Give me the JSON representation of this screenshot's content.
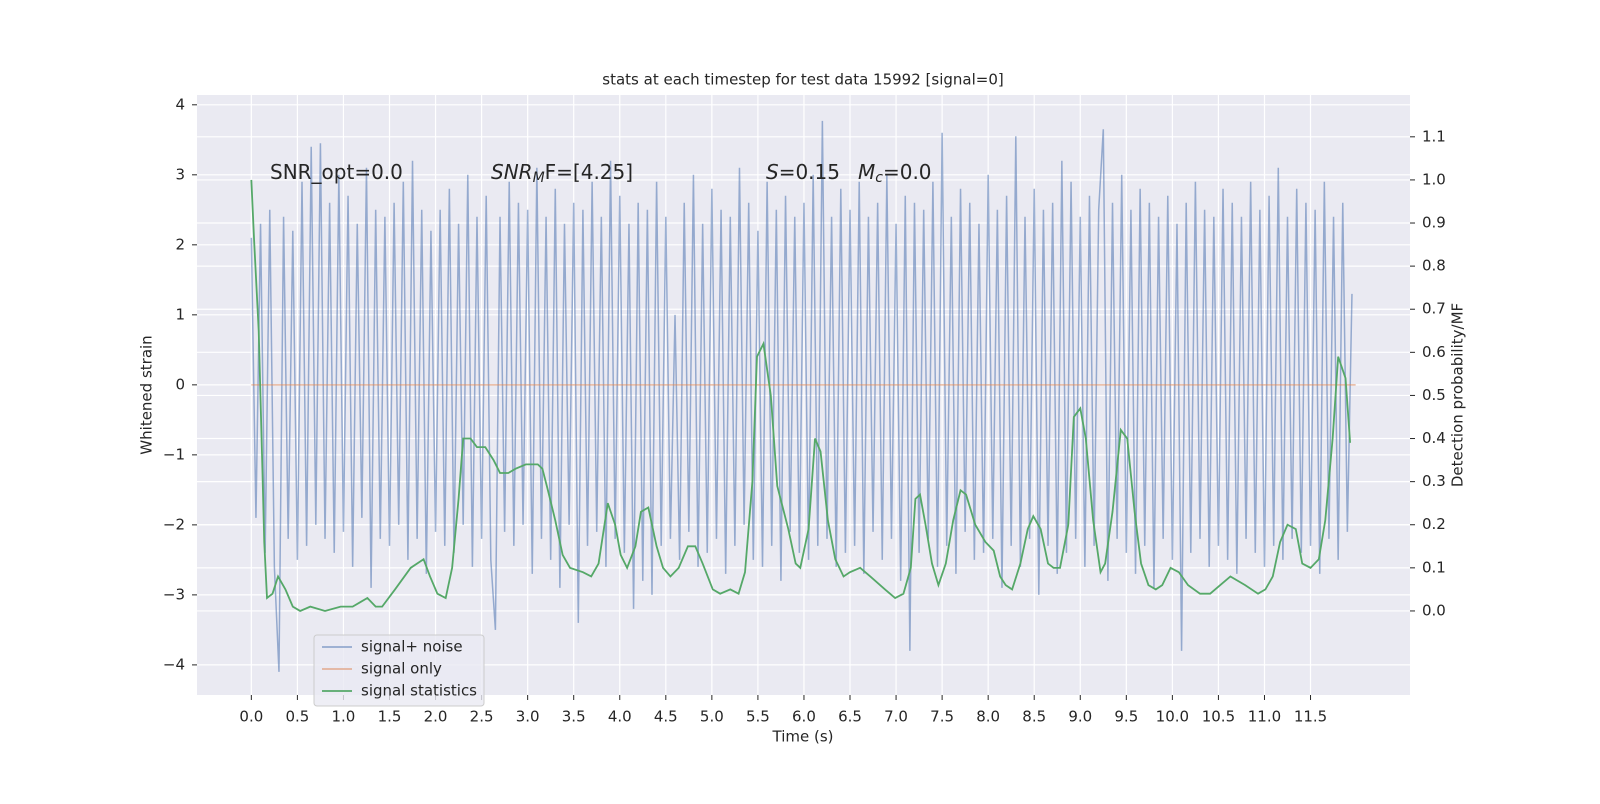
{
  "chart_data": {
    "type": "line",
    "title": "stats at each timestep for test data 15992 [signal=0]",
    "xlabel": "Time (s)",
    "ylabel": "Whitened strain",
    "y2label": "Detection probability/MF",
    "xlim": [
      -0.59,
      12.58
    ],
    "ylim": [
      -4.43,
      4.14
    ],
    "y2lim": [
      -0.195,
      1.197
    ],
    "grid": true,
    "legend_loc": "lower left",
    "xticks": [
      {
        "value": 0,
        "label": "0.0"
      },
      0.5,
      {
        "value": 1,
        "label": "1.0"
      },
      1.5,
      {
        "value": 2,
        "label": "2.0"
      },
      2.5,
      {
        "value": 3,
        "label": "3.0"
      },
      3.5,
      {
        "value": 4,
        "label": "4.0"
      },
      4.5,
      {
        "value": 5,
        "label": "5.0"
      },
      5.5,
      {
        "value": 6,
        "label": "6.0"
      },
      6.5,
      {
        "value": 7,
        "label": "7.0"
      },
      7.5,
      {
        "value": 8,
        "label": "8.0"
      },
      8.5,
      {
        "value": 9,
        "label": "9.0"
      },
      9.5,
      {
        "value": 10,
        "label": "10.0"
      },
      10.5,
      {
        "value": 11,
        "label": "11.0"
      },
      11.5
    ],
    "yticks": [
      {
        "value": -4,
        "label": "−4"
      },
      {
        "value": -3,
        "label": "−3"
      },
      {
        "value": -2,
        "label": "−2"
      },
      {
        "value": -1,
        "label": "−1"
      },
      0,
      1,
      2,
      3,
      4
    ],
    "y2ticks": [
      {
        "value": 0,
        "label": "0.0"
      },
      0.1,
      0.2,
      0.3,
      0.4,
      0.5,
      0.6,
      0.7,
      0.8,
      0.9,
      {
        "value": 1,
        "label": "1.0"
      },
      1.1
    ],
    "annotations": [
      {
        "parts": [
          "SNR_opt=0.0"
        ]
      },
      {
        "parts": [
          "SNR",
          "M",
          "F=[4.25]"
        ]
      },
      {
        "parts": [
          "S",
          "=0.15"
        ]
      },
      {
        "parts": [
          "M",
          "c",
          "=0.0"
        ]
      }
    ],
    "series": [
      {
        "name": "signal+ noise",
        "color": "#4c72b0",
        "axis": "y",
        "x": [
          0,
          0.05,
          0.1,
          0.15,
          0.2,
          0.25,
          0.3,
          0.35,
          0.4,
          0.45,
          0.5,
          0.55,
          0.6,
          0.65,
          0.7,
          0.75,
          0.8,
          0.85,
          0.9,
          0.95,
          1,
          1.05,
          1.1,
          1.15,
          1.2,
          1.25,
          1.3,
          1.35,
          1.4,
          1.45,
          1.5,
          1.55,
          1.6,
          1.65,
          1.7,
          1.75,
          1.8,
          1.85,
          1.9,
          1.95,
          2,
          2.05,
          2.1,
          2.15,
          2.2,
          2.25,
          2.3,
          2.35,
          2.4,
          2.45,
          2.5,
          2.55,
          2.6,
          2.65,
          2.7,
          2.75,
          2.8,
          2.85,
          2.9,
          2.95,
          3,
          3.05,
          3.1,
          3.15,
          3.2,
          3.25,
          3.3,
          3.35,
          3.4,
          3.45,
          3.5,
          3.55,
          3.6,
          3.65,
          3.7,
          3.75,
          3.8,
          3.85,
          3.9,
          3.95,
          4,
          4.05,
          4.1,
          4.15,
          4.2,
          4.25,
          4.3,
          4.35,
          4.4,
          4.45,
          4.5,
          4.55,
          4.6,
          4.65,
          4.7,
          4.75,
          4.8,
          4.85,
          4.9,
          4.95,
          5,
          5.05,
          5.1,
          5.15,
          5.2,
          5.25,
          5.3,
          5.35,
          5.4,
          5.45,
          5.5,
          5.55,
          5.6,
          5.65,
          5.7,
          5.75,
          5.8,
          5.85,
          5.9,
          5.95,
          6,
          6.05,
          6.1,
          6.15,
          6.2,
          6.25,
          6.3,
          6.35,
          6.4,
          6.45,
          6.5,
          6.55,
          6.6,
          6.65,
          6.7,
          6.75,
          6.8,
          6.85,
          6.9,
          6.95,
          7,
          7.05,
          7.1,
          7.15,
          7.2,
          7.25,
          7.3,
          7.35,
          7.4,
          7.45,
          7.5,
          7.55,
          7.6,
          7.65,
          7.7,
          7.75,
          7.8,
          7.85,
          7.9,
          7.95,
          8,
          8.05,
          8.1,
          8.15,
          8.2,
          8.25,
          8.3,
          8.35,
          8.4,
          8.45,
          8.5,
          8.55,
          8.6,
          8.65,
          8.7,
          8.75,
          8.8,
          8.85,
          8.9,
          8.95,
          9,
          9.05,
          9.1,
          9.15,
          9.2,
          9.25,
          9.3,
          9.35,
          9.4,
          9.45,
          9.5,
          9.55,
          9.6,
          9.65,
          9.7,
          9.75,
          9.8,
          9.85,
          9.9,
          9.95,
          10,
          10.05,
          10.1,
          10.15,
          10.2,
          10.25,
          10.3,
          10.35,
          10.4,
          10.45,
          10.5,
          10.55,
          10.6,
          10.65,
          10.7,
          10.75,
          10.8,
          10.85,
          10.9,
          10.95,
          11,
          11.05,
          11.1,
          11.15,
          11.2,
          11.25,
          11.3,
          11.35,
          11.4,
          11.45,
          11.5,
          11.55,
          11.6,
          11.65,
          11.7,
          11.75,
          11.8,
          11.85,
          11.9,
          11.95
        ],
        "values": [
          2.1,
          -1.9,
          2.3,
          -2.4,
          2.5,
          -2.6,
          -4.1,
          2.4,
          -2.2,
          2.2,
          -2.5,
          2.9,
          -2.3,
          3.4,
          -2.0,
          3.45,
          -2.2,
          2.6,
          -2.4,
          3.0,
          -2.1,
          2.7,
          -2.6,
          2.3,
          -1.9,
          3.1,
          -2.9,
          2.5,
          -2.2,
          2.4,
          -2.3,
          2.6,
          -2.0,
          2.9,
          -2.5,
          3.2,
          -2.2,
          2.5,
          -2.7,
          2.2,
          -2.1,
          2.5,
          -2.3,
          2.8,
          -2.4,
          2.3,
          -2.0,
          3.0,
          -2.6,
          2.4,
          -2.2,
          2.7,
          -2.5,
          -3.5,
          2.4,
          -2.1,
          2.9,
          -2.3,
          2.6,
          -2.0,
          2.5,
          -2.7,
          3.1,
          -2.2,
          2.4,
          -2.5,
          2.8,
          -2.9,
          2.3,
          -2.0,
          2.6,
          -3.4,
          2.5,
          -2.3,
          2.9,
          -2.1,
          2.4,
          -2.6,
          3.2,
          -2.2,
          2.7,
          -2.4,
          2.3,
          -3.2,
          2.6,
          -2.8,
          2.5,
          -3.0,
          2.9,
          -2.3,
          2.4,
          -2.2,
          1.0,
          -2.5,
          2.6,
          -2.1,
          3.0,
          -2.6,
          2.3,
          -2.4,
          2.8,
          -2.2,
          2.5,
          -2.7,
          2.4,
          -2.3,
          3.1,
          -2.0,
          2.6,
          -2.5,
          2.2,
          -2.6,
          2.9,
          -2.3,
          2.5,
          -2.8,
          2.7,
          -2.1,
          2.4,
          -2.4,
          2.6,
          -2.5,
          3.0,
          -2.3,
          3.77,
          -2.2,
          2.4,
          -2.6,
          2.8,
          -2.4,
          2.5,
          -2.3,
          2.9,
          -2.7,
          2.4,
          -2.1,
          2.6,
          -2.5,
          3.0,
          -2.2,
          2.3,
          -2.8,
          2.7,
          -3.8,
          2.6,
          -2.4,
          2.5,
          -2.2,
          2.9,
          -2.6,
          3.6,
          -2.3,
          2.4,
          -2.7,
          2.8,
          -2.1,
          2.6,
          -2.5,
          2.3,
          -2.4,
          3.0,
          -2.2,
          2.5,
          -2.9,
          2.7,
          -2.3,
          3.55,
          -2.6,
          2.4,
          -2.2,
          2.8,
          -3.0,
          2.5,
          -2.3,
          2.6,
          -2.7,
          3.2,
          -2.4,
          2.9,
          -2.2,
          2.4,
          -2.6,
          2.7,
          -2.3,
          2.5,
          3.65,
          -2.8,
          2.6,
          -2.2,
          3.0,
          -2.4,
          2.5,
          -2.7,
          2.8,
          -2.3,
          2.6,
          -2.9,
          2.4,
          -2.2,
          2.7,
          -2.5,
          2.3,
          -3.8,
          2.6,
          -2.4,
          2.9,
          -2.2,
          2.5,
          -2.6,
          2.4,
          -2.3,
          2.8,
          -2.5,
          2.6,
          -2.7,
          2.4,
          -2.2,
          2.9,
          -2.4,
          2.5,
          -2.6,
          2.7,
          -2.3,
          3.1,
          -2.5,
          2.4,
          -2.2,
          2.8,
          -2.4,
          2.6,
          -2.3,
          2.5,
          -2.7,
          2.9,
          -2.2,
          2.4,
          -2.5,
          2.6,
          -2.1,
          1.3
        ]
      },
      {
        "name": "signal only",
        "color": "#dd8452",
        "axis": "y",
        "x": [
          0,
          11.99
        ],
        "values": [
          0,
          0
        ]
      },
      {
        "name": "signal statistics",
        "color": "#55a868",
        "axis": "y2",
        "x": [
          0,
          0.03,
          0.08,
          0.12,
          0.14,
          0.17,
          0.23,
          0.29,
          0.37,
          0.45,
          0.53,
          0.64,
          0.8,
          0.97,
          1.1,
          1.18,
          1.26,
          1.35,
          1.42,
          1.56,
          1.73,
          1.87,
          1.94,
          2.02,
          2.11,
          2.18,
          2.25,
          2.3,
          2.38,
          2.45,
          2.54,
          2.63,
          2.7,
          2.79,
          2.87,
          2.98,
          3.11,
          3.16,
          3.22,
          3.3,
          3.38,
          3.46,
          3.6,
          3.69,
          3.77,
          3.87,
          3.95,
          4.01,
          4.08,
          4.17,
          4.23,
          4.31,
          4.4,
          4.47,
          4.55,
          4.64,
          4.74,
          4.82,
          4.9,
          5.01,
          5.09,
          5.2,
          5.29,
          5.36,
          5.44,
          5.49,
          5.56,
          5.64,
          5.71,
          5.83,
          5.91,
          5.96,
          6.05,
          6.12,
          6.18,
          6.26,
          6.34,
          6.43,
          6.5,
          6.61,
          6.72,
          6.88,
          6.99,
          7.08,
          7.16,
          7.21,
          7.26,
          7.32,
          7.39,
          7.46,
          7.54,
          7.62,
          7.7,
          7.76,
          7.86,
          7.97,
          8.06,
          8.13,
          8.19,
          8.26,
          8.35,
          8.43,
          8.49,
          8.57,
          8.65,
          8.71,
          8.78,
          8.87,
          8.93,
          9,
          9.06,
          9.14,
          9.22,
          9.27,
          9.35,
          9.44,
          9.51,
          9.59,
          9.66,
          9.74,
          9.82,
          9.89,
          9.98,
          10.07,
          10.17,
          10.3,
          10.41,
          10.52,
          10.63,
          10.79,
          10.93,
          11.01,
          11.09,
          11.17,
          11.25,
          11.34,
          11.41,
          11.5,
          11.59,
          11.66,
          11.74,
          11.8,
          11.88,
          11.93
        ],
        "values": [
          1.0,
          0.86,
          0.65,
          0.33,
          0.16,
          0.03,
          0.04,
          0.08,
          0.05,
          0.01,
          0.0,
          0.01,
          0.0,
          0.01,
          0.01,
          0.02,
          0.03,
          0.01,
          0.01,
          0.05,
          0.1,
          0.12,
          0.08,
          0.04,
          0.03,
          0.1,
          0.26,
          0.4,
          0.4,
          0.38,
          0.38,
          0.35,
          0.32,
          0.32,
          0.33,
          0.34,
          0.34,
          0.33,
          0.28,
          0.21,
          0.13,
          0.1,
          0.09,
          0.08,
          0.11,
          0.25,
          0.2,
          0.13,
          0.1,
          0.15,
          0.23,
          0.24,
          0.15,
          0.1,
          0.08,
          0.1,
          0.15,
          0.15,
          0.11,
          0.05,
          0.04,
          0.05,
          0.04,
          0.09,
          0.3,
          0.59,
          0.62,
          0.5,
          0.29,
          0.19,
          0.11,
          0.1,
          0.19,
          0.4,
          0.37,
          0.21,
          0.12,
          0.08,
          0.09,
          0.1,
          0.08,
          0.05,
          0.03,
          0.04,
          0.1,
          0.26,
          0.27,
          0.2,
          0.11,
          0.06,
          0.11,
          0.21,
          0.28,
          0.27,
          0.2,
          0.16,
          0.14,
          0.08,
          0.06,
          0.05,
          0.11,
          0.19,
          0.22,
          0.19,
          0.11,
          0.1,
          0.1,
          0.2,
          0.45,
          0.47,
          0.4,
          0.21,
          0.09,
          0.11,
          0.23,
          0.42,
          0.4,
          0.23,
          0.11,
          0.06,
          0.05,
          0.06,
          0.1,
          0.09,
          0.06,
          0.04,
          0.04,
          0.06,
          0.08,
          0.06,
          0.04,
          0.05,
          0.08,
          0.16,
          0.2,
          0.19,
          0.11,
          0.1,
          0.12,
          0.21,
          0.4,
          0.59,
          0.54,
          0.39
        ]
      }
    ]
  }
}
